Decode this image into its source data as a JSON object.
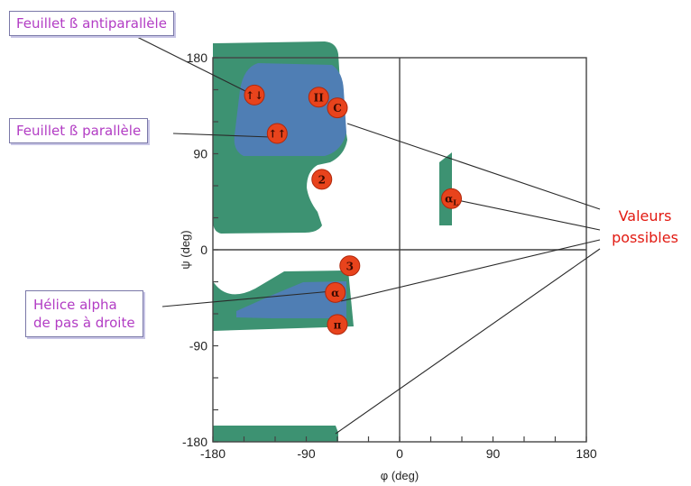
{
  "chart_data": {
    "type": "ramachandran",
    "xlabel": "φ (deg)",
    "ylabel": "ψ (deg)",
    "xlim": [
      -180,
      180
    ],
    "ylim": [
      -180,
      180
    ],
    "x_ticks": [
      "-180",
      "-90",
      "0",
      "90",
      "180"
    ],
    "y_ticks": [
      "180",
      "90",
      "0",
      "-90",
      "-180"
    ],
    "regions": [
      {
        "name": "allowed",
        "color": "#3d9272"
      },
      {
        "name": "favored",
        "color": "#4f7eb4"
      }
    ],
    "markers": [
      {
        "label": "↑↓",
        "phi": -140,
        "psi": 145
      },
      {
        "label": "II",
        "phi": -78,
        "psi": 143
      },
      {
        "label": "C",
        "phi": -60,
        "psi": 133
      },
      {
        "label": "↑↑",
        "phi": -118,
        "psi": 109
      },
      {
        "label": "2",
        "phi": -75,
        "psi": 66
      },
      {
        "label": "α",
        "label_sub": "L",
        "phi": 50,
        "psi": 48
      },
      {
        "label": "3",
        "phi": -48,
        "psi": -15
      },
      {
        "label": "α",
        "phi": -62,
        "psi": -40
      },
      {
        "label": "π",
        "phi": -60,
        "psi": -70
      }
    ]
  },
  "callouts": {
    "antiparallel": "Feuillet ß antiparallèle",
    "parallel": "Feuillet ß parallèle",
    "helix_line1": "Hélice alpha",
    "helix_line2": "de pas à droite",
    "valeurs_line1": "Valeurs",
    "valeurs_line2": "possibles"
  },
  "colors": {
    "allowed": "#3d9272",
    "favored": "#4f7eb4",
    "marker": "#e8431c",
    "callout_text": "#b23cc4",
    "valeurs_text": "#e21a12"
  }
}
